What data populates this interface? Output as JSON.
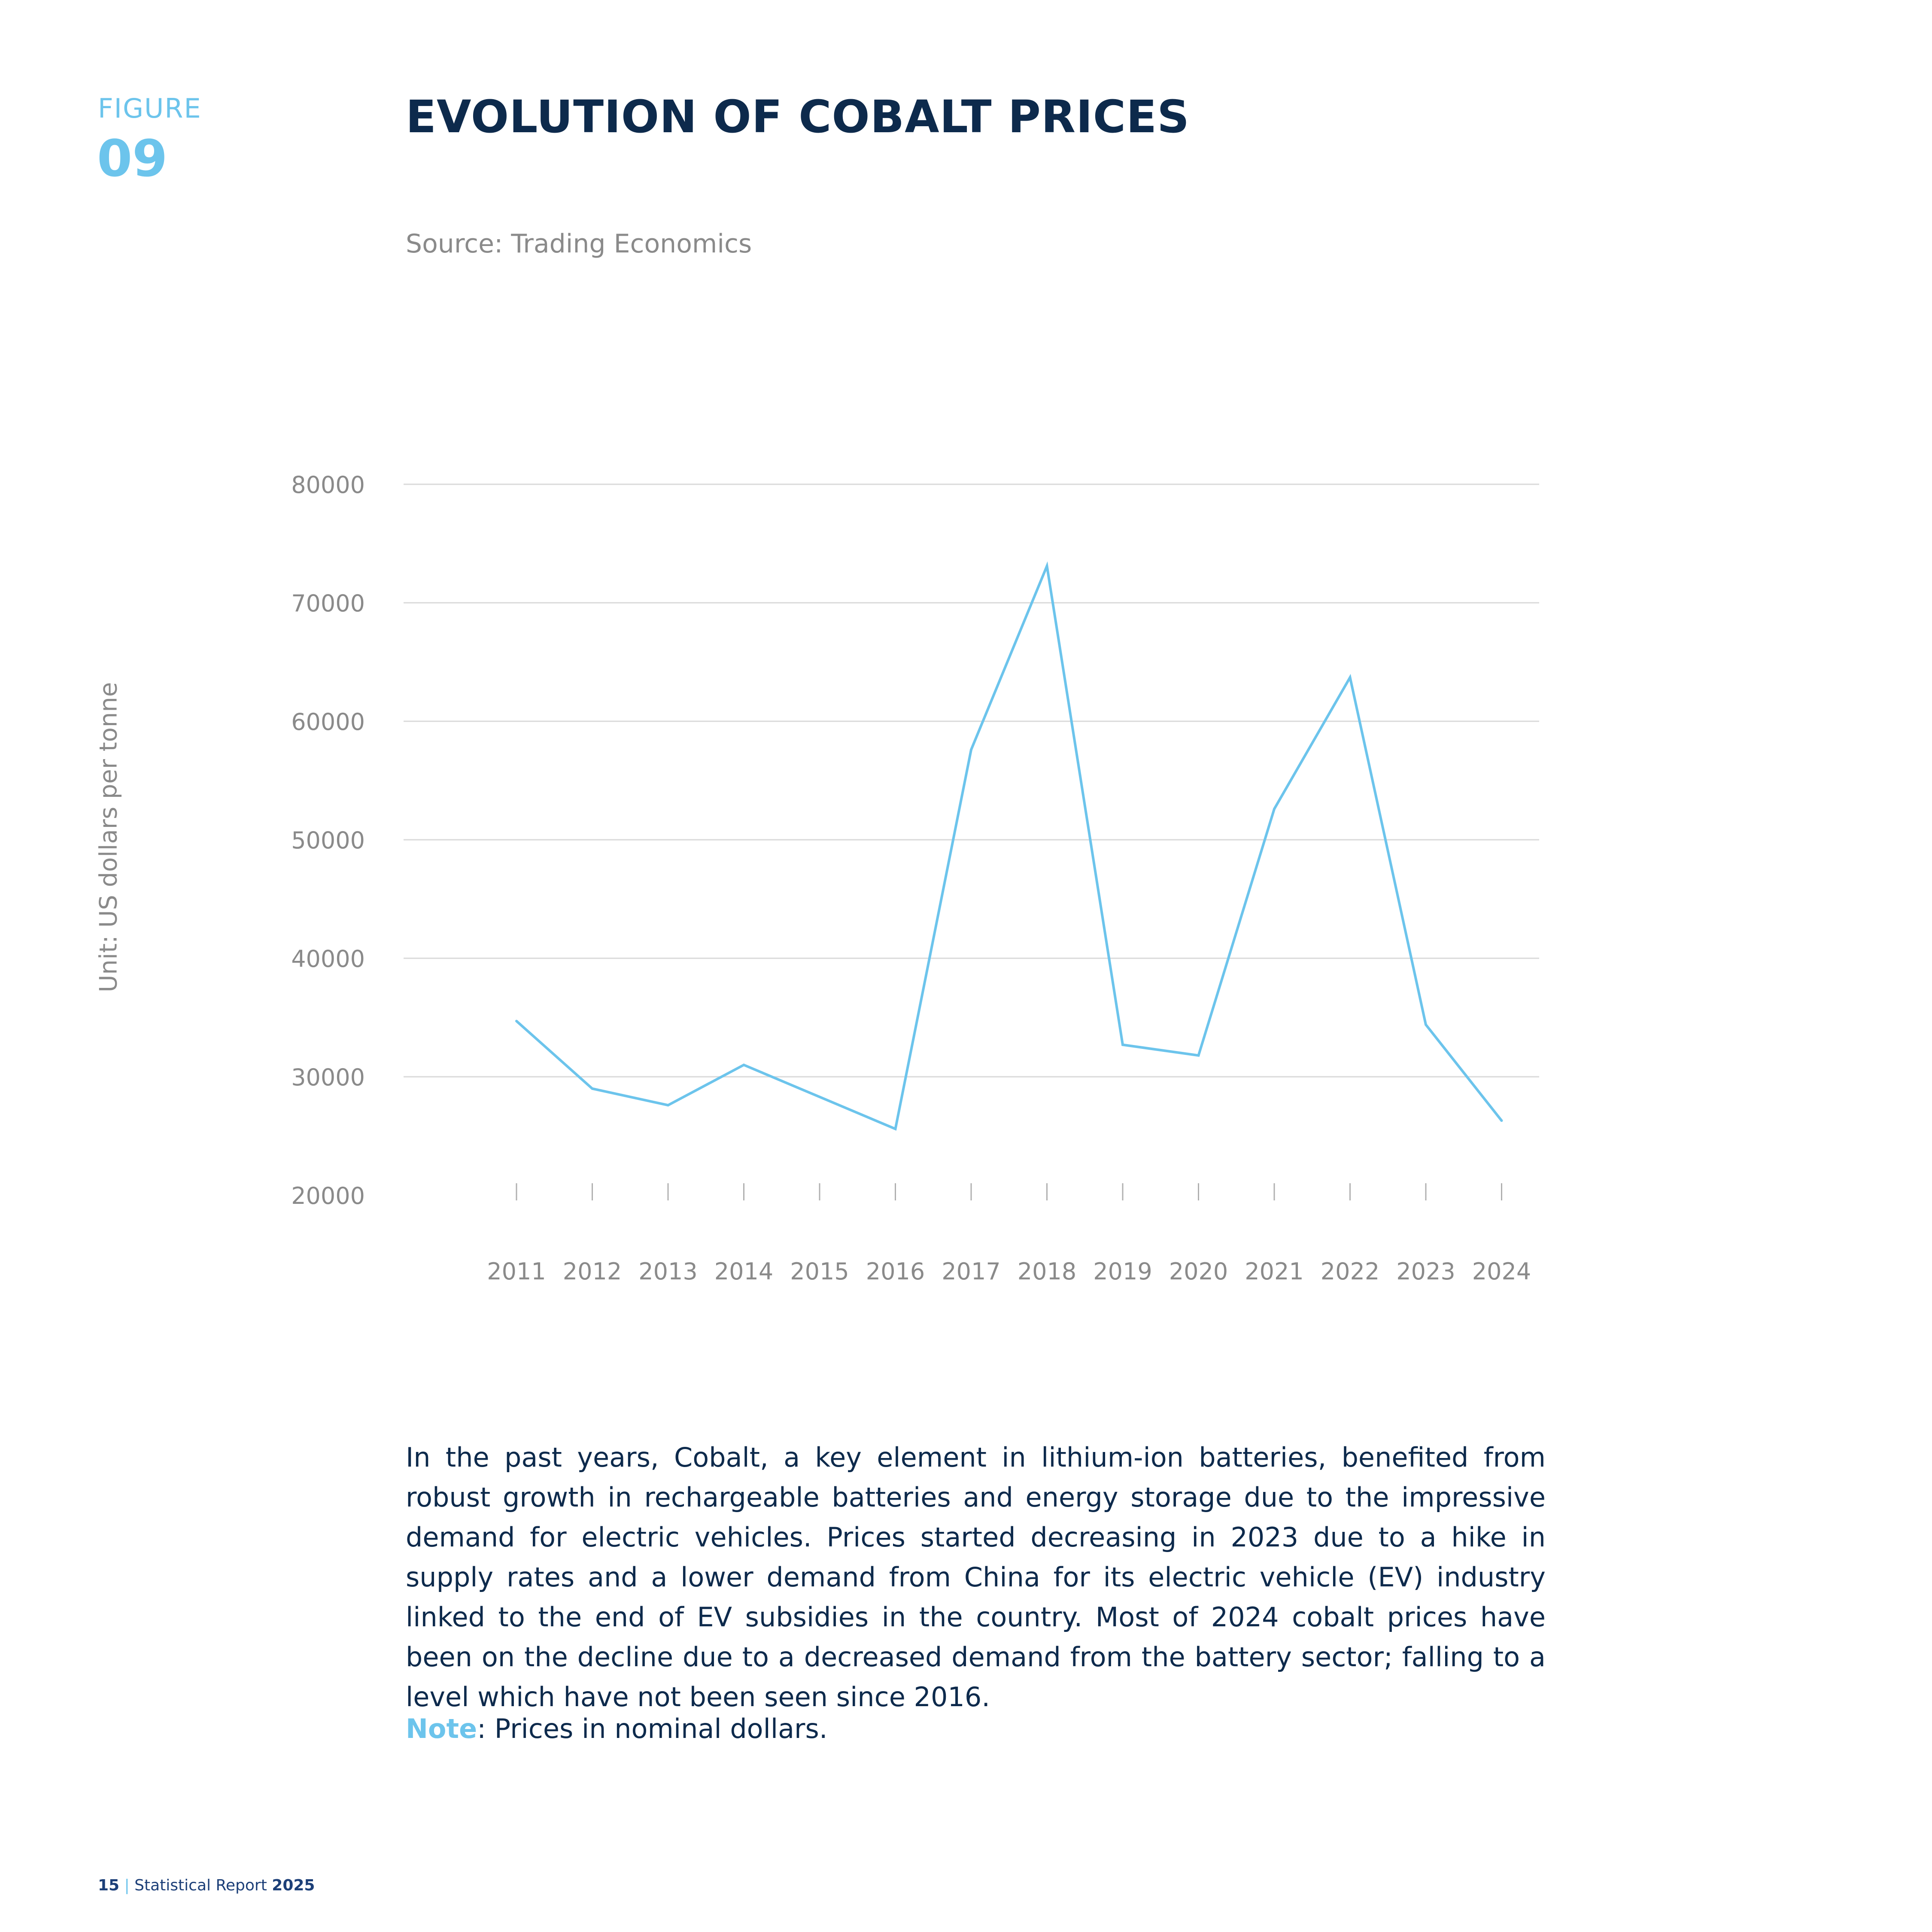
{
  "figure": {
    "label": "FIGURE",
    "number": "09"
  },
  "title": "EVOLUTION OF COBALT PRICES",
  "source": "Source: Trading Economics",
  "colors": {
    "accent": "#6cc4ec",
    "navy": "#0d2a4c",
    "line": "#6cc4ec",
    "grid": "#d9d9d9",
    "axis_text": "#8a8a8a"
  },
  "chart_data": {
    "type": "line",
    "ylabel": "Unit: US dollars per tonne",
    "xlabel": "",
    "ylim": [
      20000,
      80000
    ],
    "yticks": [
      "20000",
      "30000",
      "40000",
      "50000",
      "60000",
      "70000",
      "80000"
    ],
    "x": [
      "2011",
      "2012",
      "2013",
      "2014",
      "2015",
      "2016",
      "2017",
      "2018",
      "2019",
      "2020",
      "2021",
      "2022",
      "2023",
      "2024"
    ],
    "series": [
      {
        "values": [
          34700,
          29000,
          27600,
          31000,
          28300,
          25600,
          57600,
          73100,
          32700,
          31800,
          52600,
          63700,
          34400,
          26300
        ]
      }
    ],
    "grid": true,
    "legend": "none"
  },
  "body": {
    "paragraph": "In the past years, Cobalt, a key element in lithium-ion batteries, benefited from robust growth in rechargeable batteries and energy storage due to the impressive demand for electric vehicles. Prices started decreasing in 2023 due to a hike in supply rates and a lower demand from China for its electric vehicle (EV) industry linked to the end of EV subsidies in the country. Most of 2024 cobalt prices have been on the decline due to a decreased demand from the battery sector; falling to a level which have not been seen since 2016.",
    "note_label": "Note",
    "note_text": ": Prices in nominal dollars."
  },
  "footer": {
    "page": "15",
    "separator": "|",
    "report": "Statistical Report",
    "year": "2025"
  }
}
